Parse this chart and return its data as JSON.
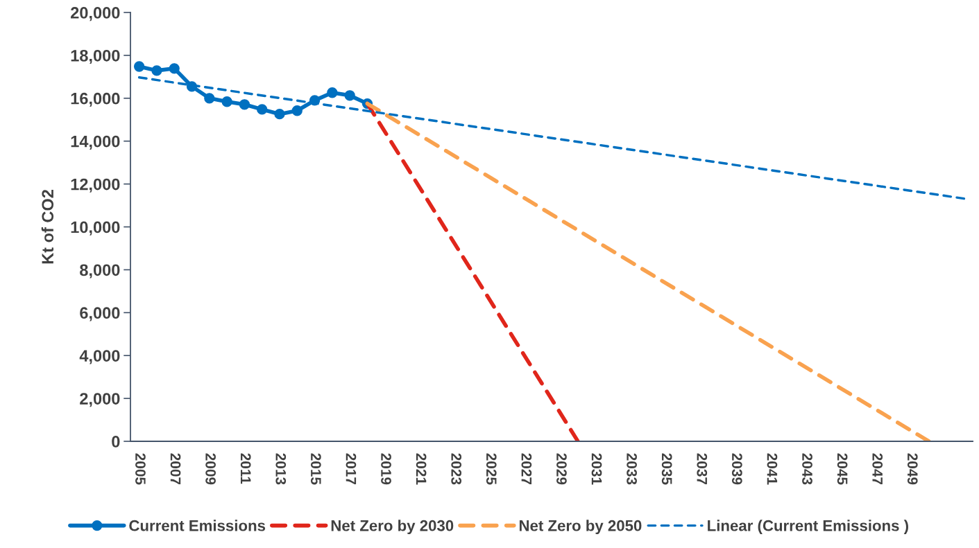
{
  "chart_data": {
    "type": "line",
    "ylabel": "Kt of CO2",
    "categories": [
      "2005",
      null,
      "2007",
      null,
      "2009",
      null,
      "2011",
      null,
      "2013",
      null,
      "2015",
      null,
      "2017",
      null,
      "2019",
      null,
      "2021",
      null,
      "2023",
      null,
      "2025",
      null,
      "2027",
      null,
      "2029",
      null,
      "2031",
      null,
      "2033",
      null,
      "2035",
      null,
      "2037",
      null,
      "2039",
      null,
      "2041",
      null,
      "2043",
      null,
      "2045",
      null,
      "2047",
      null,
      "2049",
      null,
      null,
      null
    ],
    "series": [
      {
        "name": "Current Emissions",
        "color": "#0070c0",
        "marker": "circle",
        "line_style": "solid",
        "values": [
          17480,
          17290,
          17390,
          16550,
          16000,
          15840,
          15710,
          15480,
          15260,
          15420,
          15900,
          16260,
          16130,
          15750,
          null,
          null,
          null,
          null,
          null,
          null,
          null,
          null,
          null,
          null,
          null,
          null,
          null,
          null,
          null,
          null,
          null,
          null,
          null,
          null,
          null,
          null,
          null,
          null,
          null,
          null,
          null,
          null,
          null,
          null,
          null,
          null,
          null,
          null
        ]
      },
      {
        "name": "Net Zero by 2030",
        "color": "#e0261b",
        "marker": "none",
        "line_style": "dashed",
        "values": [
          null,
          null,
          null,
          null,
          null,
          null,
          null,
          null,
          null,
          null,
          null,
          null,
          null,
          15750,
          null,
          null,
          null,
          null,
          null,
          null,
          null,
          null,
          null,
          null,
          null,
          0,
          null,
          null,
          null,
          null,
          null,
          null,
          null,
          null,
          null,
          null,
          null,
          null,
          null,
          null,
          null,
          null,
          null,
          null,
          null,
          null,
          null,
          null
        ]
      },
      {
        "name": "Net Zero by 2050",
        "color": "#f9a24f",
        "marker": "none",
        "line_style": "dashed",
        "values": [
          null,
          null,
          null,
          null,
          null,
          null,
          null,
          null,
          null,
          null,
          null,
          null,
          null,
          15750,
          null,
          null,
          null,
          null,
          null,
          null,
          null,
          null,
          null,
          null,
          null,
          null,
          null,
          null,
          null,
          null,
          null,
          null,
          null,
          null,
          null,
          null,
          null,
          null,
          null,
          null,
          null,
          null,
          null,
          null,
          null,
          0,
          null,
          null
        ]
      },
      {
        "name": "Linear (Current Emissions )",
        "color": "#0070c0",
        "marker": "none",
        "line_style": "dotted",
        "values": [
          16970,
          null,
          null,
          null,
          null,
          null,
          null,
          null,
          null,
          null,
          null,
          null,
          null,
          null,
          null,
          null,
          null,
          null,
          null,
          null,
          null,
          null,
          null,
          null,
          null,
          null,
          null,
          null,
          null,
          null,
          null,
          null,
          null,
          null,
          null,
          null,
          null,
          null,
          null,
          null,
          null,
          null,
          null,
          null,
          null,
          null,
          null,
          11320
        ]
      }
    ],
    "ylim": [
      0,
      20000
    ],
    "yticks": [
      0,
      {
        "value": 2000,
        "label": "2,000"
      },
      {
        "value": 4000,
        "label": "4,000"
      },
      {
        "value": 6000,
        "label": "6,000"
      },
      {
        "value": 8000,
        "label": "8,000"
      },
      {
        "value": 10000,
        "label": "10,000"
      },
      {
        "value": 12000,
        "label": "12,000"
      },
      {
        "value": 14000,
        "label": "14,000"
      },
      {
        "value": 16000,
        "label": "16,000"
      },
      {
        "value": 18000,
        "label": "18,000"
      },
      {
        "value": 20000,
        "label": "20,000"
      }
    ],
    "grid": false,
    "legend": "bottom"
  }
}
